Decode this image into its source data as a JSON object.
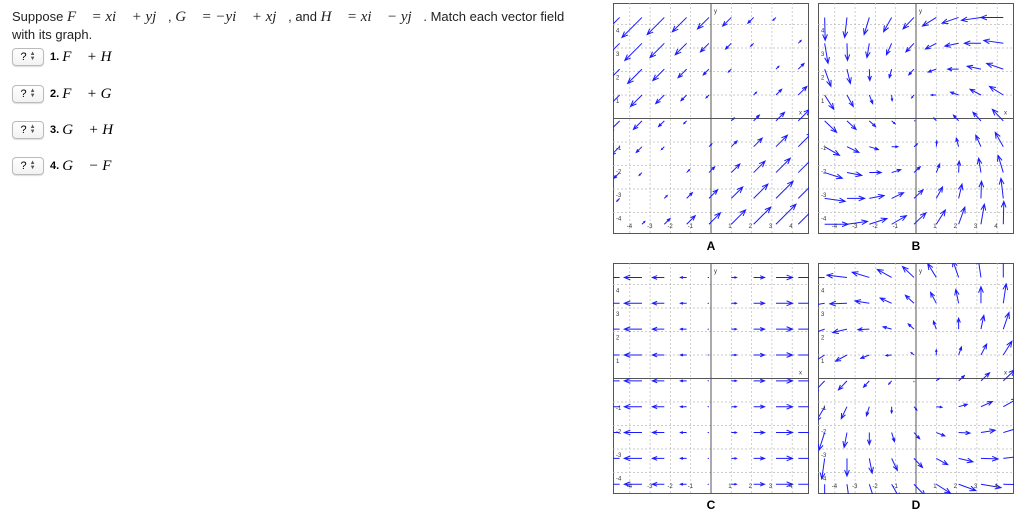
{
  "question": {
    "prefix": "Suppose ",
    "F": "F⃗ = xi⃗ + yj⃗",
    "sep1": ", ",
    "G": "G⃗ = −yi⃗ + xj⃗",
    "sep2": ", and ",
    "H": "H⃗ = xi⃗ − yj⃗",
    "suffix": ". Match each vector field with its graph."
  },
  "items": [
    {
      "select": "?",
      "num": "1.",
      "expr": "F⃗ + H⃗"
    },
    {
      "select": "?",
      "num": "2.",
      "expr": "F⃗ + G⃗"
    },
    {
      "select": "?",
      "num": "3.",
      "expr": "G⃗ + H⃗"
    },
    {
      "select": "?",
      "num": "4.",
      "expr": "G⃗ − F⃗"
    }
  ],
  "graphs": [
    {
      "label": "A",
      "field": "G+H"
    },
    {
      "label": "B",
      "field": "G-F"
    },
    {
      "label": "C",
      "field": "F+H"
    },
    {
      "label": "D",
      "field": "F+G"
    }
  ],
  "axis": {
    "xlabel": "x",
    "ylabel": "y",
    "ticks": [
      "-4",
      "-3",
      "-2",
      "-1",
      "1",
      "2",
      "3",
      "4"
    ]
  },
  "colors": {
    "arrow": "#1a1aff",
    "axis": "#555555",
    "grid": "#bbbbbb"
  }
}
